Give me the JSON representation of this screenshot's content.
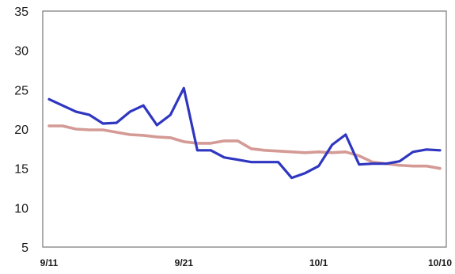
{
  "chart_data": {
    "type": "line",
    "title": "",
    "xlabel": "",
    "ylabel": "",
    "x": [
      "9/11",
      "9/12",
      "9/13",
      "9/14",
      "9/15",
      "9/16",
      "9/17",
      "9/18",
      "9/19",
      "9/20",
      "9/21",
      "9/22",
      "9/23",
      "9/24",
      "9/25",
      "9/26",
      "9/27",
      "9/28",
      "9/29",
      "9/30",
      "10/1",
      "10/2",
      "10/3",
      "10/4",
      "10/5",
      "10/6",
      "10/7",
      "10/8",
      "10/9",
      "10/10"
    ],
    "x_tick_labels": [
      "9/11",
      "9/21",
      "10/1",
      "10/10"
    ],
    "ylim": [
      5,
      35
    ],
    "y_ticks": [
      5,
      10,
      15,
      20,
      25,
      30,
      35
    ],
    "grid": false,
    "legend": "none",
    "series": [
      {
        "color": "#2f36c0",
        "values": [
          23.8,
          23.0,
          22.2,
          21.8,
          20.7,
          20.8,
          22.2,
          23.0,
          20.5,
          21.8,
          25.2,
          17.3,
          17.3,
          16.4,
          16.1,
          15.8,
          15.8,
          15.8,
          13.8,
          14.4,
          15.3,
          18.0,
          19.3,
          15.5,
          15.6,
          15.6,
          15.9,
          17.1,
          17.4,
          17.3
        ]
      },
      {
        "color": "#d49a95",
        "values": [
          20.4,
          20.4,
          20.0,
          19.9,
          19.9,
          19.6,
          19.3,
          19.2,
          19.0,
          18.9,
          18.4,
          18.2,
          18.2,
          18.5,
          18.5,
          17.5,
          17.3,
          17.2,
          17.1,
          17.0,
          17.1,
          17.0,
          17.1,
          16.6,
          15.8,
          15.6,
          15.4,
          15.3,
          15.3,
          15.0
        ]
      }
    ]
  }
}
